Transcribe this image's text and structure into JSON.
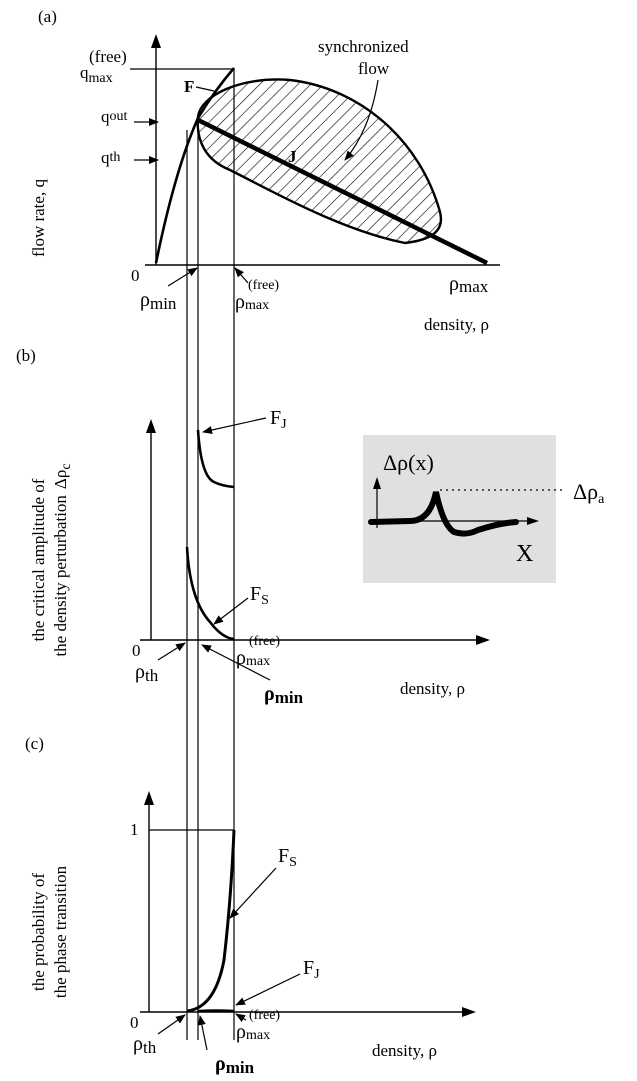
{
  "panel_a": {
    "tag": "(a)",
    "ylabel": "flow rate, q",
    "qmax_q": "q",
    "qmax_sub": "max",
    "qmax_sup": "(free)",
    "qout_q": "q",
    "qout_sub": "out",
    "qth_q": "q",
    "qth_sub": "th",
    "F": "F",
    "J": "J",
    "sync1": "synchronized",
    "sync2": "flow",
    "zero": "0",
    "rho": "ρ",
    "rhomax_sub": "max",
    "rhomin_sub": "min",
    "rhofree_sub": "max",
    "rhofree_sup": "(free)",
    "xlabel": "density, ρ"
  },
  "panel_b": {
    "tag": "(b)",
    "ylabel1": "the critical amplitude of",
    "ylabel2": "the density perturbation",
    "delta": "Δρ",
    "delta_sub": "c",
    "FJ": "F",
    "FJ_sub": "J",
    "FS": "F",
    "FS_sub": "S",
    "zero": "0",
    "rho": "ρ",
    "rhoth_sub": "th",
    "rhomin_sub": "min",
    "rhofree_sub": "max",
    "rhofree_sup": "(free)",
    "xlabel": "density, ρ",
    "inset_ylabel": "Δρ(x)",
    "inset_xlabel": "X",
    "inset_amp": "Δρ",
    "inset_amp_sub": "a"
  },
  "panel_c": {
    "tag": "(c)",
    "ylabel1": "the probability of",
    "ylabel2": "the phase transition",
    "one": "1",
    "zero": "0",
    "FS": "F",
    "FS_sub": "S",
    "FJ": "F",
    "FJ_sub": "J",
    "rho": "ρ",
    "rhoth_sub": "th",
    "rhomin_sub": "min",
    "rhofree_sub": "max",
    "rhofree_sup": "(free)",
    "xlabel": "density, ρ"
  },
  "colors": {
    "ink": "#000000",
    "inset_bg": "#e0e0e0"
  }
}
